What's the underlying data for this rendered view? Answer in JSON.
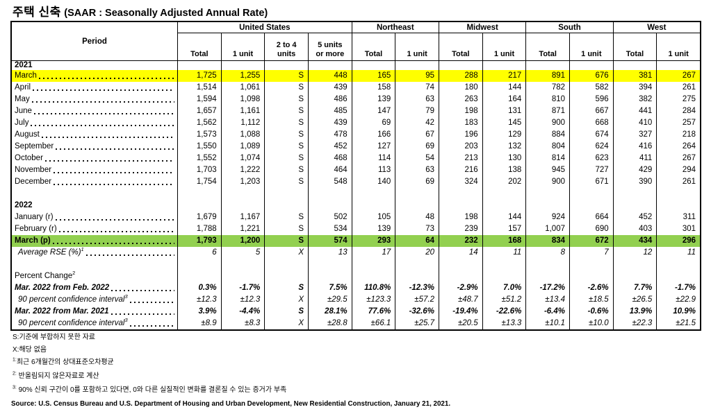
{
  "title": {
    "korean": "주택 신축",
    "english": "(SAAR : Seasonally Adjusted Annual Rate)"
  },
  "colors": {
    "highlight_yellow": "#FFFF00",
    "highlight_green": "#92D050",
    "border": "#000000"
  },
  "table": {
    "period_header": "Period",
    "groups": [
      {
        "label": "United States"
      },
      {
        "label": "Northeast"
      },
      {
        "label": "Midwest"
      },
      {
        "label": "South"
      },
      {
        "label": "West"
      }
    ],
    "subheaders": [
      "Total",
      "1 unit",
      "2 to 4\nunits",
      "5 units\nor more",
      "Total",
      "1 unit",
      "Total",
      "1 unit",
      "Total",
      "1 unit",
      "Total",
      "1 unit"
    ],
    "rows": [
      {
        "type": "year",
        "label": "2021"
      },
      {
        "type": "month",
        "label": "March",
        "leader": true,
        "highlight": "yellow",
        "cells": [
          "1,725",
          "1,255",
          "S",
          "448",
          "165",
          "95",
          "288",
          "217",
          "891",
          "676",
          "381",
          "267"
        ]
      },
      {
        "type": "month",
        "label": "April",
        "leader": true,
        "cells": [
          "1,514",
          "1,061",
          "S",
          "439",
          "158",
          "74",
          "180",
          "144",
          "782",
          "582",
          "394",
          "261"
        ]
      },
      {
        "type": "month",
        "label": "May",
        "leader": true,
        "cells": [
          "1,594",
          "1,098",
          "S",
          "486",
          "139",
          "63",
          "263",
          "164",
          "810",
          "596",
          "382",
          "275"
        ]
      },
      {
        "type": "month",
        "label": "June",
        "leader": true,
        "cells": [
          "1,657",
          "1,161",
          "S",
          "485",
          "147",
          "79",
          "198",
          "131",
          "871",
          "667",
          "441",
          "284"
        ]
      },
      {
        "type": "month",
        "label": "July",
        "leader": true,
        "cells": [
          "1,562",
          "1,112",
          "S",
          "439",
          "69",
          "42",
          "183",
          "145",
          "900",
          "668",
          "410",
          "257"
        ]
      },
      {
        "type": "month",
        "label": "August",
        "leader": true,
        "cells": [
          "1,573",
          "1,088",
          "S",
          "478",
          "166",
          "67",
          "196",
          "129",
          "884",
          "674",
          "327",
          "218"
        ]
      },
      {
        "type": "month",
        "label": "September",
        "leader": true,
        "cells": [
          "1,550",
          "1,089",
          "S",
          "452",
          "127",
          "69",
          "203",
          "132",
          "804",
          "624",
          "416",
          "264"
        ]
      },
      {
        "type": "month",
        "label": "October",
        "leader": true,
        "cells": [
          "1,552",
          "1,074",
          "S",
          "468",
          "114",
          "54",
          "213",
          "130",
          "814",
          "623",
          "411",
          "267"
        ]
      },
      {
        "type": "month",
        "label": "November",
        "leader": true,
        "cells": [
          "1,703",
          "1,222",
          "S",
          "464",
          "113",
          "63",
          "216",
          "138",
          "945",
          "727",
          "429",
          "294"
        ]
      },
      {
        "type": "month",
        "label": "December",
        "leader": true,
        "cells": [
          "1,754",
          "1,203",
          "S",
          "548",
          "140",
          "69",
          "324",
          "202",
          "900",
          "671",
          "390",
          "261"
        ]
      },
      {
        "type": "blank"
      },
      {
        "type": "year",
        "label": "2022"
      },
      {
        "type": "month",
        "label": "January (r)",
        "leader": true,
        "cells": [
          "1,679",
          "1,167",
          "S",
          "502",
          "105",
          "48",
          "198",
          "144",
          "924",
          "664",
          "452",
          "311"
        ]
      },
      {
        "type": "month",
        "label": "February (r)",
        "leader": true,
        "cells": [
          "1,788",
          "1,221",
          "S",
          "534",
          "139",
          "73",
          "239",
          "157",
          "1,007",
          "690",
          "403",
          "301"
        ]
      },
      {
        "type": "month",
        "label": "March (p)",
        "leader": true,
        "highlight": "green",
        "cells": [
          "1,793",
          "1,200",
          "S",
          "574",
          "293",
          "64",
          "232",
          "168",
          "834",
          "672",
          "434",
          "296"
        ]
      },
      {
        "type": "rse",
        "label": "Average RSE (%)",
        "sup": "1",
        "leader": true,
        "cells": [
          "6",
          "5",
          "X",
          "13",
          "17",
          "20",
          "14",
          "11",
          "8",
          "7",
          "12",
          "11"
        ]
      },
      {
        "type": "blank"
      },
      {
        "type": "section",
        "label": "Percent Change",
        "sup": "2"
      },
      {
        "type": "change",
        "label": "Mar. 2022 from Feb. 2022",
        "leader": true,
        "cells": [
          "0.3%",
          "-1.7%",
          "S",
          "7.5%",
          "110.8%",
          "-12.3%",
          "-2.9%",
          "7.0%",
          "-17.2%",
          "-2.6%",
          "7.7%",
          "-1.7%"
        ]
      },
      {
        "type": "ci",
        "label": "90 percent confidence interval",
        "sup": "3",
        "leader": true,
        "cells": [
          "±12.3",
          "±12.3",
          "X",
          "±29.5",
          "±123.3",
          "±57.2",
          "±48.7",
          "±51.2",
          "±13.4",
          "±18.5",
          "±26.5",
          "±22.9"
        ]
      },
      {
        "type": "change",
        "label": "Mar. 2022 from Mar. 2021",
        "leader": true,
        "cells": [
          "3.9%",
          "-4.4%",
          "S",
          "28.1%",
          "77.6%",
          "-32.6%",
          "-19.4%",
          "-22.6%",
          "-6.4%",
          "-0.6%",
          "13.9%",
          "10.9%"
        ]
      },
      {
        "type": "ci",
        "label": "90 percent confidence interval",
        "sup": "3",
        "leader": true,
        "cells": [
          "±8.9",
          "±8.3",
          "X",
          "±28.8",
          "±66.1",
          "±25.7",
          "±20.5",
          "±13.3",
          "±10.1",
          "±10.0",
          "±22.3",
          "±21.5"
        ]
      }
    ]
  },
  "footnotes": [
    {
      "prefix": "S:",
      "text": "기준에 부합하지 못한 자료"
    },
    {
      "prefix": "X:",
      "text": "해당 없음"
    },
    {
      "sup": "1:",
      "text": "최근 6개월간의 상대표준오차평균"
    },
    {
      "sup": "2:",
      "text": " 반올림되지 않은자료로 계산"
    },
    {
      "sup": "3:",
      "text": " 90% 신뢰 구간이 0를 포함하고 있다면, 0와 다른 실질적인 변화를 결론질 수 있는 증거가 부족"
    }
  ],
  "source": "Source: U.S. Census Bureau and U.S. Department of Housing and Urban Development, New Residential Construction, January 21, 2021."
}
